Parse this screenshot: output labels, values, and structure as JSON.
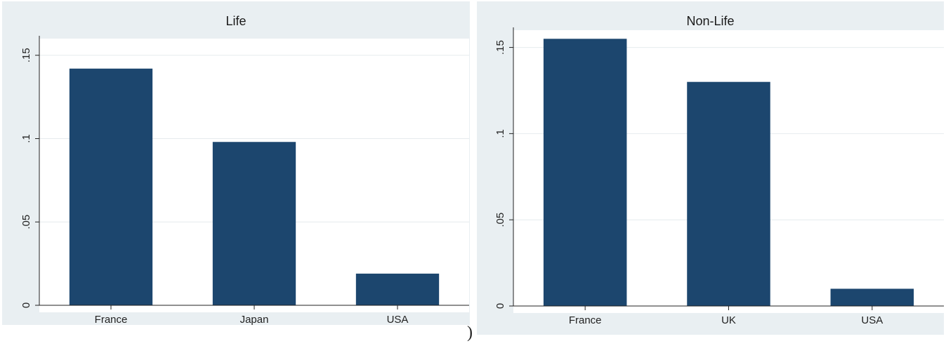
{
  "chart_data": [
    {
      "type": "bar",
      "title": "Life",
      "categories": [
        "France",
        "Japan",
        "USA"
      ],
      "values": [
        0.142,
        0.098,
        0.019
      ],
      "ylim": [
        0,
        0.16
      ],
      "yticks": [
        0,
        0.05,
        0.1,
        0.15
      ],
      "ytick_labels": [
        "0",
        ".05",
        ".1",
        ".15"
      ],
      "xlabel": "",
      "ylabel": "",
      "grid": true,
      "bar_color": "#1c466e"
    },
    {
      "type": "bar",
      "title": "Non-Life",
      "categories": [
        "France",
        "UK",
        "USA"
      ],
      "values": [
        0.155,
        0.13,
        0.01
      ],
      "ylim": [
        0,
        0.16
      ],
      "yticks": [
        0,
        0.05,
        0.1,
        0.15
      ],
      "ytick_labels": [
        "0",
        ".05",
        ".1",
        ".15"
      ],
      "xlabel": "",
      "ylabel": "",
      "grid": true,
      "bar_color": "#1c466e"
    }
  ],
  "stray_mark": ")"
}
